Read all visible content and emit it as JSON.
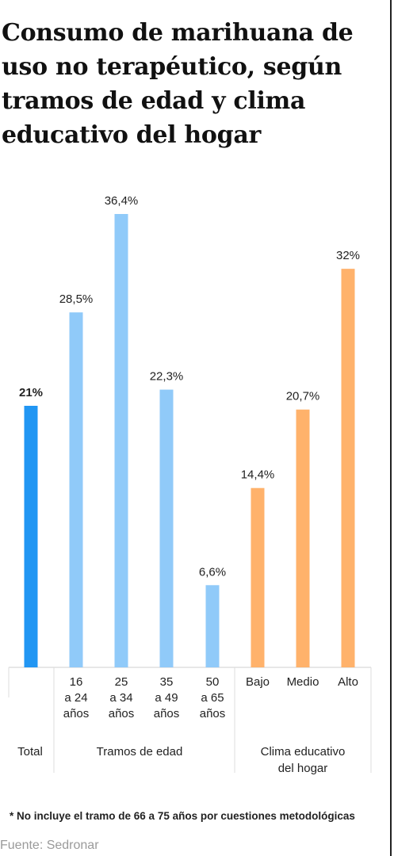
{
  "title": "Consumo de marihuana de uso no terapéutico, según tramos de edad y clima educativo del hogar",
  "chart_data": {
    "type": "bar",
    "categories": [
      [
        "Total"
      ],
      [
        "16",
        "a 24",
        "años"
      ],
      [
        "25",
        "a 34",
        "años"
      ],
      [
        "35",
        "a 49",
        "años"
      ],
      [
        "50",
        "a 65",
        "años"
      ],
      [
        "Bajo"
      ],
      [
        "Medio"
      ],
      [
        "Alto"
      ]
    ],
    "values": [
      21,
      28.5,
      36.4,
      22.3,
      6.6,
      14.4,
      20.7,
      32
    ],
    "value_labels": [
      "21%",
      "28,5%",
      "36,4%",
      "22,3%",
      "6,6%",
      "14,4%",
      "20,7%",
      "32%"
    ],
    "groups": [
      {
        "lines": [
          "Total"
        ],
        "members": [
          0
        ]
      },
      {
        "lines": [
          "Tramos de edad"
        ],
        "members": [
          1,
          2,
          3,
          4
        ]
      },
      {
        "lines": [
          "Clima educativo",
          "del hogar"
        ],
        "members": [
          5,
          6,
          7
        ]
      }
    ],
    "colors": [
      "#2196f3",
      "#90caf9",
      "#90caf9",
      "#90caf9",
      "#90caf9",
      "#ffb26b",
      "#ffb26b",
      "#ffb26b"
    ],
    "ylim": [
      0,
      36.4
    ],
    "grid": false,
    "legend": "none"
  },
  "footnote": "* No incluye el tramo de 66 a 75 años por cuestiones metodológicas",
  "source": "Fuente: Sedronar"
}
